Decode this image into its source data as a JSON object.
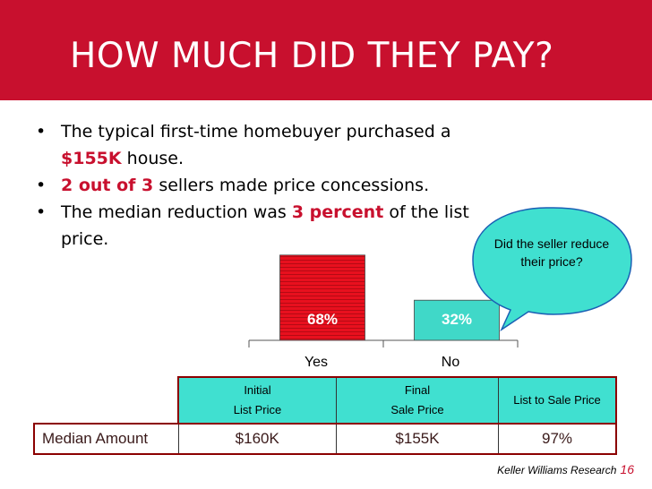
{
  "slide": {
    "title": "HOW MUCH DID THEY PAY?",
    "bullets": [
      {
        "pre": "The typical first-time homebuyer purchased a",
        "hl": "$155K",
        "post": " house."
      },
      {
        "pre": "",
        "hl": "2 out of 3",
        "post": " sellers made price concessions."
      },
      {
        "pre": "The median reduction was ",
        "hl": "3 percent",
        "post": " of the list price."
      }
    ],
    "bubble_text": "Did the seller reduce their price?",
    "footer_source": "Keller Williams Research",
    "footer_page": "16"
  },
  "chart_data": {
    "type": "bar",
    "categories": [
      "Yes",
      "No"
    ],
    "values": [
      68,
      32
    ],
    "data_labels": [
      "68%",
      "32%"
    ],
    "colors": [
      "#e8101e",
      "#40d8c8"
    ],
    "ylim": [
      0,
      100
    ],
    "title": "",
    "xlabel": "",
    "ylabel": ""
  },
  "table": {
    "headers": [
      {
        "line1": "Initial",
        "line2": "List Price"
      },
      {
        "line1": "Final",
        "line2": "Sale Price"
      },
      {
        "line1": "List to Sale Price",
        "line2": ""
      }
    ],
    "row_label": "Median Amount",
    "values": [
      "$160K",
      "$155K",
      "97%"
    ]
  }
}
